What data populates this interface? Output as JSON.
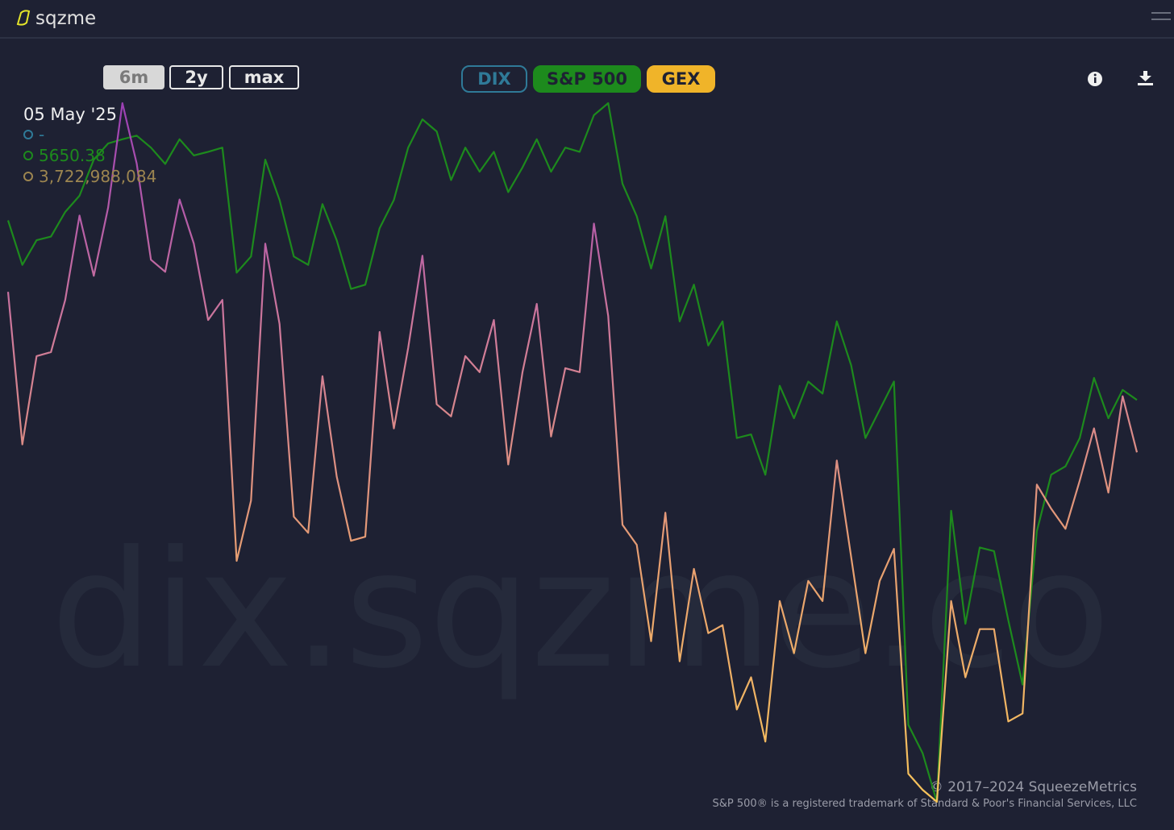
{
  "app": {
    "logo": "sqzme",
    "range_buttons": [
      "6m",
      "2y",
      "max"
    ],
    "active_range": 0,
    "watermark": "dix.sqzme.co",
    "copyright": "© 2017–2024 SqueezeMetrics",
    "trademark": "S&P 500® is a registered trademark of Standard & Poor's Financial Services, LLC"
  },
  "chart_data": {
    "type": "line",
    "hover": {
      "date": "05 May '25",
      "dix": "-",
      "sp500": "5650.38",
      "gex": "3,722,988,084"
    },
    "series": [
      {
        "name": "DIX",
        "color": "#2f7a98",
        "legend_color": "#2f7a98",
        "button": "outline",
        "values": [
          null,
          null,
          null,
          null,
          null,
          null,
          null,
          null,
          null,
          null,
          null,
          null,
          null,
          null,
          null,
          null,
          null,
          null,
          null,
          null,
          null,
          null,
          null,
          null,
          null,
          null,
          null,
          null,
          null,
          null,
          null,
          null,
          null,
          null,
          null,
          null,
          null,
          null,
          null,
          null,
          null,
          null,
          null,
          null,
          null,
          null,
          null,
          null,
          null,
          null,
          null,
          null,
          null,
          null,
          null,
          null,
          null,
          null,
          null,
          null,
          null,
          null,
          null,
          null,
          null,
          null,
          null,
          null,
          null,
          null,
          null,
          null,
          null,
          null,
          null,
          null,
          null,
          null,
          null,
          null
        ]
      },
      {
        "name": "S&P 500",
        "color": "#1d8a1d",
        "legend_color": "#1d8a1d",
        "button": "fill",
        "values": [
          5949,
          5875,
          5916,
          5922,
          5963,
          5990,
          6050,
          6077,
          6084,
          6090,
          6070,
          6043,
          6084,
          6057,
          6063,
          6070,
          5862,
          5889,
          6050,
          5983,
          5889,
          5875,
          5976,
          5916,
          5835,
          5842,
          5936,
          5983,
          6070,
          6117,
          6097,
          6016,
          6070,
          6030,
          6063,
          5996,
          6037,
          6084,
          6030,
          6070,
          6063,
          6124,
          6144,
          6010,
          5956,
          5869,
          5956,
          5781,
          5842,
          5741,
          5781,
          5587,
          5593,
          5526,
          5674,
          5620,
          5681,
          5661,
          5781,
          5708,
          5587,
          5634,
          5681,
          5110,
          5063,
          4982,
          5466,
          5278,
          5405,
          5399,
          5284,
          5177,
          5432,
          5526,
          5540,
          5587,
          5687,
          5620,
          5667,
          5650.38
        ]
      },
      {
        "name": "GEX",
        "color": "#f0b429",
        "legend_color": "#9c8550",
        "button": "fill",
        "gradient": [
          "#9b3fb5",
          "#cf7a9a",
          "#e8a070",
          "#f7c45a"
        ],
        "values": [
          7520000000,
          3910000000,
          6000000000,
          6095000000,
          7330000000,
          9325000000,
          7900000000,
          9515000000,
          11985000000,
          10560000000,
          8280000000,
          7995000000,
          9705000000,
          8660000000,
          6855000000,
          7330000000,
          1155000000,
          2580000000,
          8660000000,
          6760000000,
          2200000000,
          1820000000,
          5525000000,
          3150000000,
          1630000000,
          1725000000,
          6570000000,
          4290000000,
          6190000000,
          8375000000,
          4860000000,
          4575000000,
          6000000000,
          5620000000,
          6855000000,
          3435000000,
          5620000000,
          7235000000,
          4100000000,
          5715000000,
          5620000000,
          9135000000,
          6950000000,
          2010000000,
          1535000000,
          -745000000,
          2295000000,
          -1220000000,
          965000000,
          -555000000,
          -365000000,
          -2360000000,
          -1600000000,
          -3120000000,
          205000000,
          -1030000000,
          680000000,
          205000000,
          3530000000,
          1250000000,
          -1030000000,
          680000000,
          1440000000,
          -3880000000,
          -4260000000,
          -4545000000,
          205000000,
          -1600000000,
          -460000000,
          -460000000,
          -2645000000,
          -2455000000,
          2960000000,
          2390000000,
          1915000000,
          3055000000,
          4290000000,
          2770000000,
          5050000000,
          3722988084
        ]
      }
    ]
  }
}
